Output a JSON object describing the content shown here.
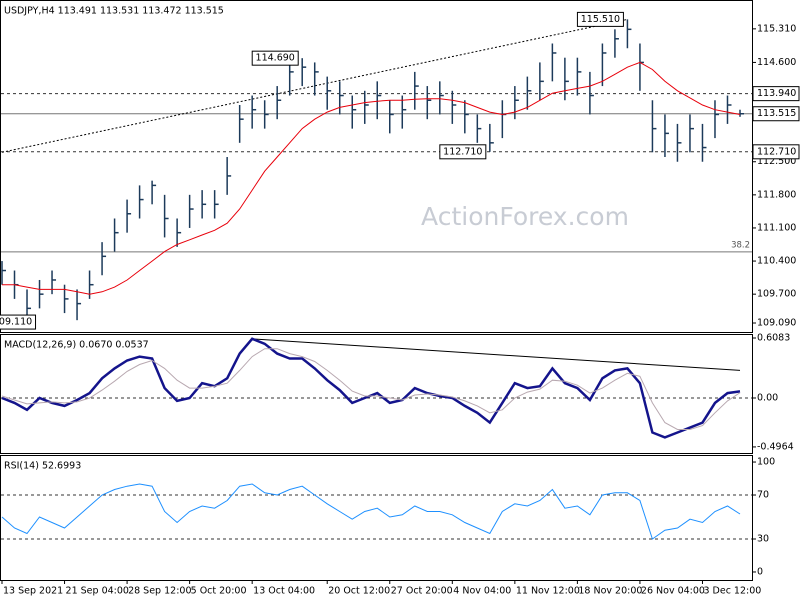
{
  "chart_data": [
    {
      "type": "ohlc",
      "title": "USDJPY,H4  113.491 113.531 113.472 113.515",
      "color": "#1c3a5a",
      "categories": [
        "13 Sep 2021",
        null,
        null,
        null,
        null,
        "21 Sep 04:00",
        null,
        null,
        null,
        null,
        "28 Sep 12:00",
        null,
        null,
        null,
        null,
        "5 Oct 20:00",
        null,
        null,
        null,
        null,
        "13 Oct 04:00",
        null,
        null,
        null,
        null,
        null,
        "20 Oct 12:00",
        null,
        null,
        null,
        null,
        "27 Oct 20:00",
        null,
        null,
        null,
        null,
        "4 Nov 04:00",
        null,
        null,
        null,
        null,
        "11 Nov 12:00",
        null,
        null,
        null,
        null,
        "18 Nov 20:00",
        null,
        null,
        null,
        null,
        "26 Nov 04:00",
        null,
        null,
        null,
        null,
        "3 Dec 12:00",
        null,
        null,
        null
      ],
      "high": [
        110.4,
        110.2,
        109.8,
        110.0,
        110.2,
        109.9,
        109.8,
        110.2,
        110.8,
        111.3,
        111.7,
        112.0,
        112.1,
        111.8,
        111.3,
        111.8,
        111.9,
        111.9,
        112.6,
        113.7,
        113.9,
        113.8,
        114.1,
        114.6,
        114.69,
        114.6,
        114.3,
        114.2,
        113.9,
        114.0,
        114.2,
        113.8,
        113.9,
        114.4,
        114.1,
        114.2,
        114.0,
        113.8,
        113.5,
        113.3,
        113.8,
        114.1,
        114.3,
        114.6,
        115.0,
        114.7,
        114.7,
        114.4,
        115.0,
        115.3,
        115.51,
        115.0,
        113.8,
        113.5,
        113.3,
        113.5,
        113.3,
        113.8,
        113.9,
        113.6
      ],
      "low": [
        109.9,
        109.6,
        109.11,
        109.4,
        109.7,
        109.3,
        109.15,
        109.6,
        110.1,
        110.6,
        111.0,
        111.3,
        111.6,
        110.9,
        110.7,
        111.1,
        111.3,
        111.3,
        111.8,
        112.9,
        113.2,
        113.2,
        113.4,
        113.9,
        114.1,
        113.9,
        113.6,
        113.5,
        113.2,
        113.3,
        113.4,
        113.1,
        113.2,
        113.6,
        113.4,
        113.5,
        113.3,
        113.1,
        112.9,
        112.71,
        113.0,
        113.4,
        113.6,
        113.8,
        114.2,
        113.8,
        113.9,
        113.5,
        114.1,
        114.7,
        114.9,
        114.0,
        112.7,
        112.6,
        112.5,
        112.7,
        112.5,
        113.0,
        113.3,
        113.45
      ],
      "close": [
        110.2,
        109.9,
        109.4,
        109.7,
        110.0,
        109.6,
        109.5,
        109.9,
        110.5,
        111.0,
        111.4,
        111.7,
        112.0,
        111.3,
        111.0,
        111.5,
        111.6,
        111.6,
        112.2,
        113.4,
        113.6,
        113.5,
        113.8,
        114.4,
        114.5,
        114.4,
        114.0,
        113.9,
        113.6,
        113.7,
        113.9,
        113.5,
        113.6,
        114.1,
        113.8,
        113.9,
        113.7,
        113.5,
        113.2,
        112.9,
        113.5,
        113.8,
        114.0,
        114.2,
        114.8,
        114.2,
        114.4,
        113.9,
        114.8,
        115.1,
        115.3,
        114.6,
        113.2,
        113.1,
        112.9,
        113.2,
        112.8,
        113.5,
        113.7,
        113.515
      ],
      "series": [
        {
          "color": "#e8000b",
          "values": [
            109.9,
            109.9,
            109.85,
            109.8,
            109.8,
            109.8,
            109.75,
            109.7,
            109.75,
            109.85,
            110.0,
            110.2,
            110.4,
            110.6,
            110.75,
            110.85,
            110.95,
            111.05,
            111.2,
            111.5,
            111.9,
            112.3,
            112.6,
            112.9,
            113.2,
            113.4,
            113.55,
            113.65,
            113.7,
            113.75,
            113.78,
            113.8,
            113.8,
            113.82,
            113.83,
            113.83,
            113.8,
            113.75,
            113.65,
            113.55,
            113.5,
            113.55,
            113.65,
            113.8,
            113.95,
            114.0,
            114.05,
            114.1,
            114.2,
            114.35,
            114.5,
            114.6,
            114.45,
            114.2,
            114.0,
            113.85,
            113.7,
            113.6,
            113.55,
            113.5
          ]
        }
      ],
      "ylim": [
        108.9,
        115.92
      ],
      "yticks": [
        {
          "value": 115.31,
          "label": "115.310"
        },
        {
          "value": 114.6,
          "label": "114.600"
        },
        {
          "value": 112.5,
          "label": "112.500"
        },
        {
          "value": 111.8,
          "label": "111.800"
        },
        {
          "value": 111.1,
          "label": "111.100"
        },
        {
          "value": 110.4,
          "label": "110.400"
        },
        {
          "value": 109.7,
          "label": "109.700"
        },
        {
          "value": 109.09,
          "label": "109.090"
        }
      ],
      "levels": [
        {
          "value": 113.94,
          "label": "113.940",
          "style": "dashed",
          "boxed": true
        },
        {
          "value": 113.515,
          "label": "113.515",
          "style": "solid",
          "boxed": true
        },
        {
          "value": 112.71,
          "label": "112.710",
          "style": "dashed",
          "boxed": true
        },
        {
          "value": 110.595,
          "label": "38.2",
          "style": "solid"
        }
      ],
      "annotations": [
        {
          "label": "114.690",
          "value": 114.69,
          "x": 24
        },
        {
          "label": "115.510",
          "value": 115.51,
          "x": 50
        },
        {
          "label": "112.710",
          "value": 112.71,
          "x": 39
        },
        {
          "label": "109.110",
          "value": 109.11,
          "x": 3
        }
      ],
      "trendlines": [
        {
          "from": [
            0,
            112.7
          ],
          "to": [
            50,
            115.51
          ]
        }
      ],
      "watermark": "ActionForex.com"
    },
    {
      "type": "line",
      "title": "MACD(12,26,9) 0.0670 0.0537",
      "series": [
        {
          "color": "#14148c",
          "values": [
            0.0,
            -0.05,
            -0.12,
            0.0,
            -0.05,
            -0.08,
            -0.02,
            0.05,
            0.2,
            0.3,
            0.38,
            0.42,
            0.4,
            0.1,
            -0.03,
            0.0,
            0.15,
            0.12,
            0.2,
            0.45,
            0.6,
            0.55,
            0.45,
            0.4,
            0.4,
            0.3,
            0.18,
            0.08,
            -0.05,
            0.0,
            0.05,
            -0.05,
            -0.02,
            0.1,
            0.05,
            0.02,
            0.0,
            -0.08,
            -0.15,
            -0.25,
            -0.05,
            0.15,
            0.1,
            0.12,
            0.3,
            0.15,
            0.1,
            -0.02,
            0.2,
            0.28,
            0.3,
            0.15,
            -0.35,
            -0.4,
            -0.35,
            -0.3,
            -0.25,
            -0.05,
            0.05,
            0.067
          ]
        },
        {
          "color": "#b8a8b0",
          "values": [
            0.02,
            -0.02,
            -0.06,
            -0.05,
            -0.04,
            -0.05,
            -0.04,
            0.0,
            0.08,
            0.17,
            0.27,
            0.34,
            0.38,
            0.3,
            0.18,
            0.1,
            0.1,
            0.12,
            0.15,
            0.28,
            0.42,
            0.5,
            0.5,
            0.45,
            0.42,
            0.37,
            0.28,
            0.18,
            0.07,
            0.02,
            0.02,
            0.0,
            -0.02,
            0.03,
            0.04,
            0.03,
            0.01,
            -0.03,
            -0.08,
            -0.15,
            -0.12,
            0.0,
            0.06,
            0.09,
            0.18,
            0.17,
            0.13,
            0.05,
            0.1,
            0.18,
            0.25,
            0.22,
            -0.05,
            -0.25,
            -0.32,
            -0.32,
            -0.28,
            -0.15,
            -0.03,
            0.054
          ]
        }
      ],
      "ylim": [
        -0.558,
        0.649
      ],
      "yticks": [
        0.6083,
        {
          "value": 0,
          "label": "0.00"
        },
        -0.4964
      ],
      "levels": [
        {
          "value": 0,
          "style": "dashed"
        }
      ],
      "trendlines": [
        {
          "from": [
            20,
            0.6
          ],
          "to": [
            59,
            0.28
          ]
        }
      ]
    },
    {
      "type": "line",
      "title": "RSI(14) 52.6993",
      "series": [
        {
          "color": "#1e90ff",
          "values": [
            50,
            40,
            35,
            50,
            45,
            40,
            50,
            60,
            70,
            75,
            78,
            80,
            78,
            55,
            45,
            55,
            60,
            58,
            65,
            78,
            80,
            72,
            70,
            75,
            78,
            70,
            62,
            55,
            48,
            55,
            58,
            50,
            52,
            60,
            55,
            55,
            52,
            45,
            40,
            35,
            55,
            62,
            60,
            65,
            75,
            58,
            60,
            52,
            70,
            72,
            72,
            65,
            30,
            38,
            40,
            48,
            45,
            55,
            60,
            52.6993
          ]
        }
      ],
      "ylim": [
        -7.3,
        106.4
      ],
      "yticks": [
        100,
        70,
        30,
        0
      ],
      "levels": [
        {
          "value": 70,
          "style": "dashed"
        },
        {
          "value": 30,
          "style": "dashed"
        }
      ]
    }
  ]
}
